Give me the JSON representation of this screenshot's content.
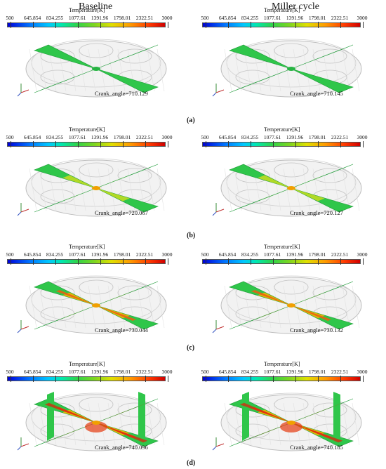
{
  "columns": [
    "Baseline",
    "Miller cycle"
  ],
  "colorbar": {
    "title": "Temperature[K]",
    "ticks": [
      "500",
      "645.854",
      "834.255",
      "1077.61",
      "1391.96",
      "1798.01",
      "2322.51",
      "3000"
    ]
  },
  "rows": [
    {
      "label": "(a)",
      "crank": [
        "Crank_angle=710.129",
        "Crank_angle=710.145"
      ]
    },
    {
      "label": "(b)",
      "crank": [
        "Crank_angle=720.067",
        "Crank_angle=720.127"
      ]
    },
    {
      "label": "(c)",
      "crank": [
        "Crank_angle=730.044",
        "Crank_angle=730.132"
      ]
    },
    {
      "label": "(d)",
      "crank": [
        "Crank_angle=740.096",
        "Crank_angle=740.185"
      ]
    }
  ]
}
